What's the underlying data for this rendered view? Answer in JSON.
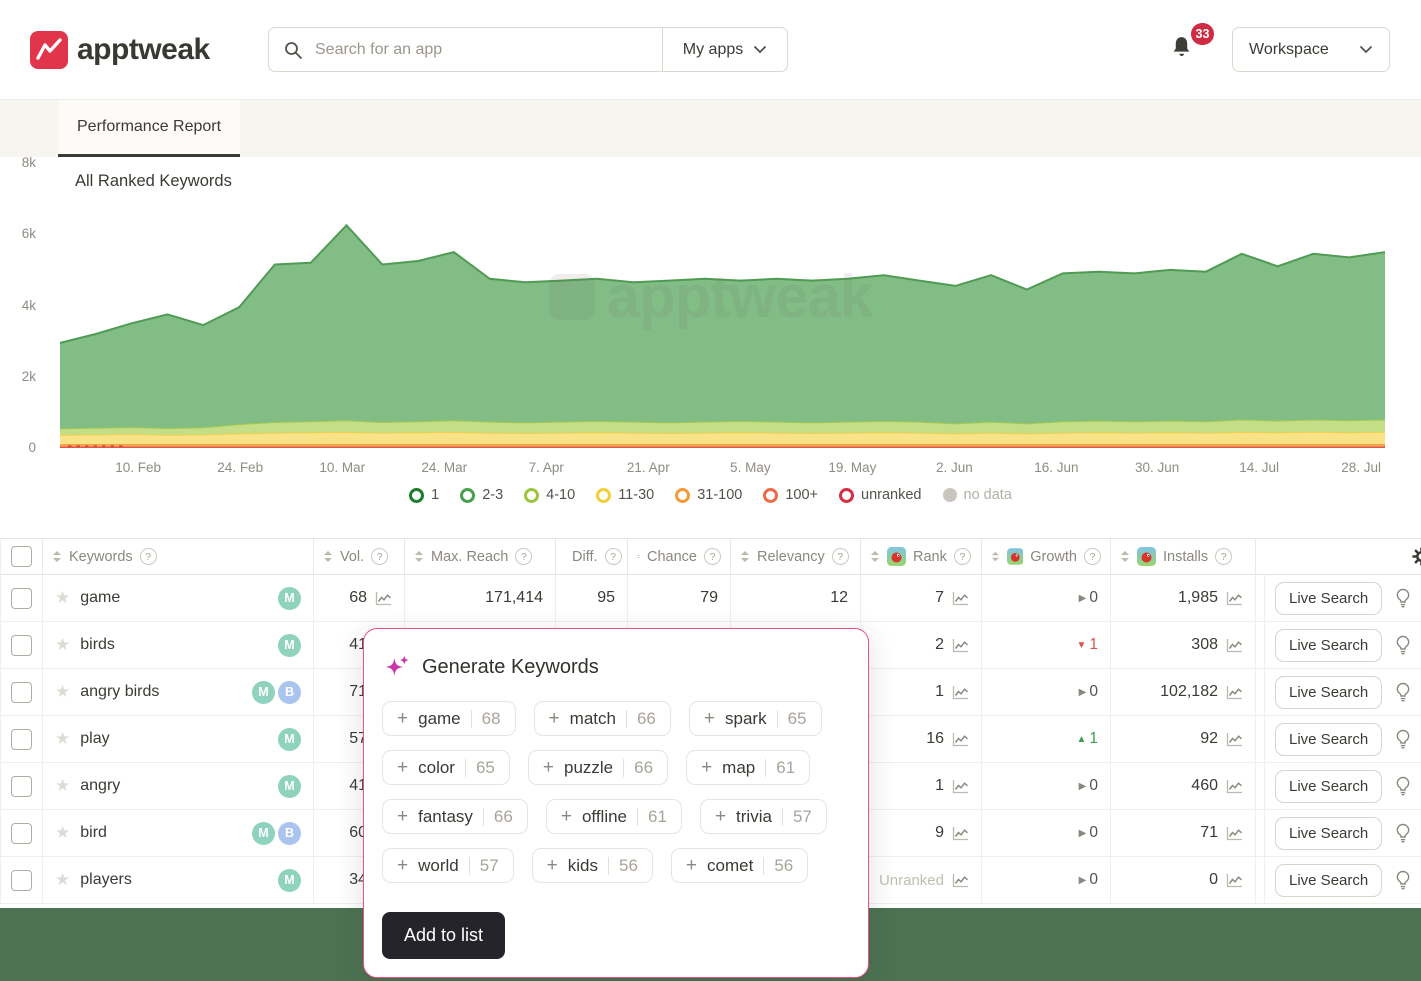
{
  "header": {
    "brand": "apptweak",
    "search_placeholder": "Search for an app",
    "my_apps_label": "My apps",
    "notifications_count": "33",
    "workspace_label": "Workspace"
  },
  "tabs": {
    "performance_report": "Performance Report"
  },
  "chart_data": {
    "type": "area",
    "stacked": true,
    "title": "All Ranked Keywords",
    "watermark": "apptweak",
    "ylabel": "",
    "xlabel": "",
    "ylim": [
      0,
      8000
    ],
    "grid": false,
    "legend_position": "bottom-center",
    "yticks": [
      {
        "label": "8k",
        "value": 8000
      },
      {
        "label": "6k",
        "value": 6000
      },
      {
        "label": "4k",
        "value": 4000
      },
      {
        "label": "2k",
        "value": 2000
      },
      {
        "label": "0",
        "value": 0
      }
    ],
    "xticks": [
      {
        "label": "10. Feb",
        "f": 0.059
      },
      {
        "label": "24. Feb",
        "f": 0.136
      },
      {
        "label": "10. Mar",
        "f": 0.213
      },
      {
        "label": "24. Mar",
        "f": 0.29
      },
      {
        "label": "7. Apr",
        "f": 0.367
      },
      {
        "label": "21. Apr",
        "f": 0.444
      },
      {
        "label": "5. May",
        "f": 0.521
      },
      {
        "label": "19. May",
        "f": 0.598
      },
      {
        "label": "2. Jun",
        "f": 0.675
      },
      {
        "label": "16. Jun",
        "f": 0.752
      },
      {
        "label": "30. Jun",
        "f": 0.828
      },
      {
        "label": "14. Jul",
        "f": 0.905
      },
      {
        "label": "28. Jul",
        "f": 0.982
      }
    ],
    "legend": [
      {
        "label": "1",
        "color": "#1e7d2c",
        "type": "ring"
      },
      {
        "label": "2-3",
        "color": "#47a04b",
        "type": "ring"
      },
      {
        "label": "4-10",
        "color": "#9dc43b",
        "type": "ring"
      },
      {
        "label": "11-30",
        "color": "#f2cf3a",
        "type": "ring"
      },
      {
        "label": "31-100",
        "color": "#f29b38",
        "type": "ring"
      },
      {
        "label": "100+",
        "color": "#ed6a45",
        "type": "ring"
      },
      {
        "label": "unranked",
        "color": "#d32f45",
        "type": "ring"
      },
      {
        "label": "no data",
        "color": "#c8c5be",
        "type": "dot"
      }
    ],
    "series": [
      {
        "name": "unranked",
        "fill": "#e8625a",
        "stroke": "#dd4b42",
        "values": [
          40,
          40,
          40,
          40,
          40,
          40,
          40,
          40,
          40,
          40,
          40,
          40,
          40,
          40,
          40,
          40,
          40,
          40,
          40,
          40,
          40,
          40,
          40,
          40,
          40,
          40,
          40,
          40,
          40,
          40,
          40,
          40,
          40,
          40,
          40,
          40,
          40,
          40
        ]
      },
      {
        "name": "31-100",
        "fill": "#f4ab57",
        "stroke": "#ef9b3a",
        "values": [
          70,
          70,
          70,
          70,
          70,
          70,
          70,
          70,
          70,
          70,
          70,
          70,
          70,
          70,
          70,
          70,
          70,
          70,
          70,
          70,
          70,
          70,
          70,
          70,
          70,
          70,
          70,
          70,
          70,
          70,
          70,
          70,
          70,
          70,
          70,
          70,
          70,
          70
        ]
      },
      {
        "name": "11-30",
        "fill": "#f8e388",
        "stroke": "#f2d04e",
        "values": [
          260,
          270,
          280,
          260,
          270,
          300,
          320,
          330,
          340,
          320,
          330,
          340,
          320,
          310,
          320,
          330,
          320,
          310,
          320,
          330,
          320,
          310,
          320,
          330,
          320,
          300,
          320,
          300,
          320,
          330,
          320,
          330,
          320,
          340,
          330,
          340,
          330,
          340
        ]
      },
      {
        "name": "4-10",
        "fill": "#c4dd87",
        "stroke": "#a5c94f",
        "values": [
          180,
          190,
          200,
          190,
          200,
          260,
          300,
          310,
          330,
          300,
          310,
          330,
          310,
          300,
          310,
          320,
          310,
          300,
          310,
          320,
          310,
          300,
          310,
          320,
          310,
          280,
          310,
          280,
          320,
          330,
          320,
          330,
          320,
          350,
          330,
          350,
          340,
          350
        ]
      },
      {
        "name": "2-3",
        "fill": "#82bd86",
        "stroke": "#4f9b54",
        "values": [
          2400,
          2630,
          2910,
          3190,
          2870,
          3280,
          4420,
          4450,
          5470,
          4420,
          4500,
          4720,
          4010,
          3930,
          3960,
          3990,
          3910,
          3980,
          4010,
          3940,
          4010,
          3980,
          4010,
          4090,
          3960,
          3860,
          4110,
          3760,
          4150,
          4180,
          4150,
          4230,
          4200,
          4650,
          4330,
          4650,
          4570,
          4700
        ]
      }
    ]
  },
  "table": {
    "columns": [
      {
        "type": "check",
        "label": ""
      },
      {
        "label": "Keywords",
        "sort": true,
        "help": true
      },
      {
        "label": "Vol.",
        "sort": true,
        "help": true
      },
      {
        "label": "Max. Reach",
        "sort": true,
        "help": true
      },
      {
        "label": "Diff.",
        "sort": true,
        "help": true
      },
      {
        "label": "Chance",
        "sort": true,
        "help": true
      },
      {
        "label": "Relevancy",
        "sort": true,
        "help": true
      },
      {
        "label": "Rank",
        "sort": true,
        "help": true,
        "app_icon": true
      },
      {
        "label": "Growth",
        "sort": true,
        "help": true,
        "app_icon": true
      },
      {
        "label": "Installs",
        "sort": true,
        "help": true,
        "app_icon": true
      },
      {
        "type": "spacer",
        "label": ""
      },
      {
        "type": "actions",
        "label": ""
      }
    ],
    "live_search_label": "Live Search",
    "rows": [
      {
        "keyword": "game",
        "badges": [
          "M"
        ],
        "vol": "68",
        "max_reach": "171,414",
        "diff": "95",
        "chance": "79",
        "relevancy": "12",
        "rank": "7",
        "rank_muted": false,
        "growth_dir": "flat",
        "growth_value": "0",
        "installs": "1,985"
      },
      {
        "keyword": "birds",
        "badges": [
          "M"
        ],
        "vol": "41",
        "max_reach": "",
        "diff": "",
        "chance": "",
        "relevancy": "",
        "rank": "2",
        "rank_muted": false,
        "growth_dir": "down",
        "growth_value": "1",
        "installs": "308"
      },
      {
        "keyword": "angry birds",
        "badges": [
          "M",
          "B"
        ],
        "vol": "71",
        "max_reach": "",
        "diff": "",
        "chance": "",
        "relevancy": "",
        "rank": "1",
        "rank_muted": false,
        "growth_dir": "flat",
        "growth_value": "0",
        "installs": "102,182"
      },
      {
        "keyword": "play",
        "badges": [
          "M"
        ],
        "vol": "57",
        "max_reach": "",
        "diff": "",
        "chance": "",
        "relevancy": "",
        "rank": "16",
        "rank_muted": false,
        "growth_dir": "up",
        "growth_value": "1",
        "installs": "92"
      },
      {
        "keyword": "angry",
        "badges": [
          "M"
        ],
        "vol": "41",
        "max_reach": "",
        "diff": "",
        "chance": "",
        "relevancy": "",
        "rank": "1",
        "rank_muted": false,
        "growth_dir": "flat",
        "growth_value": "0",
        "installs": "460"
      },
      {
        "keyword": "bird",
        "badges": [
          "M",
          "B"
        ],
        "vol": "60",
        "max_reach": "",
        "diff": "",
        "chance": "",
        "relevancy": "",
        "rank": "9",
        "rank_muted": false,
        "growth_dir": "flat",
        "growth_value": "0",
        "installs": "71"
      },
      {
        "keyword": "players",
        "badges": [
          "M"
        ],
        "vol": "34",
        "max_reach": "",
        "diff": "",
        "chance": "",
        "relevancy": "",
        "rank": "Unranked",
        "rank_muted": true,
        "growth_dir": "flat",
        "growth_value": "0",
        "installs": "0"
      }
    ]
  },
  "modal": {
    "title": "Generate Keywords",
    "chips": [
      {
        "label": "game",
        "score": "68"
      },
      {
        "label": "match",
        "score": "66"
      },
      {
        "label": "spark",
        "score": "65"
      },
      {
        "label": "color",
        "score": "65"
      },
      {
        "label": "puzzle",
        "score": "66"
      },
      {
        "label": "map",
        "score": "61"
      },
      {
        "label": "fantasy",
        "score": "66"
      },
      {
        "label": "offline",
        "score": "61"
      },
      {
        "label": "trivia",
        "score": "57"
      },
      {
        "label": "world",
        "score": "57"
      },
      {
        "label": "kids",
        "score": "56"
      },
      {
        "label": "comet",
        "score": "56"
      }
    ],
    "add_button": "Add to list"
  },
  "colors": {
    "brand_red": "#e0354a",
    "accent_pink": "#e8537f",
    "sparkle": "#c838a8",
    "footer_green": "#4b7252",
    "badge_m": "#8fd2be",
    "badge_b": "#a9c4ee",
    "danger": "#d9534f",
    "growth_up": "#3f9d4f"
  }
}
